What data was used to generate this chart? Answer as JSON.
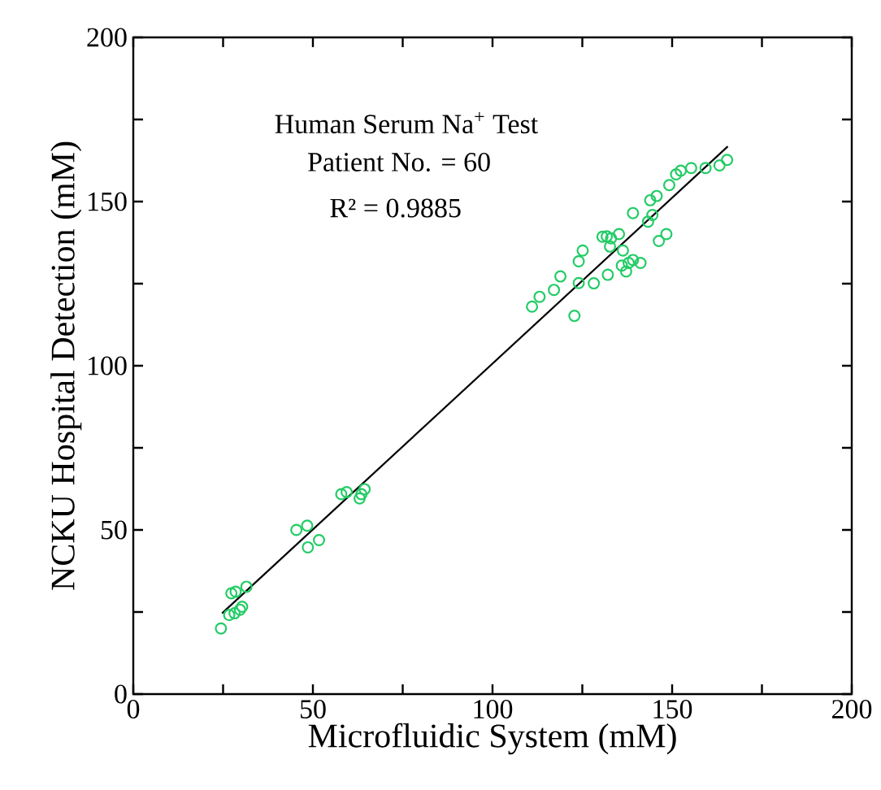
{
  "chart_data": {
    "type": "scatter",
    "xlabel": "Microfluidic System (mM)",
    "ylabel": "NCKU Hospital Detection (mM)",
    "annotations": [
      "Human Serum Na$^{+}$ Test",
      "Patient No. = 60",
      "R² = 0.9885"
    ],
    "marker": "circle",
    "grid": false,
    "xlim": [
      0,
      200
    ],
    "ylim": [
      0,
      200
    ],
    "xticks": [
      0,
      {
        "value": 25,
        "label": null
      },
      50,
      {
        "value": 75,
        "label": null
      },
      100,
      {
        "value": 125,
        "label": null
      },
      150,
      {
        "value": 175,
        "label": null
      },
      200
    ],
    "yticks": [
      0,
      {
        "value": 25,
        "label": null
      },
      50,
      {
        "value": 75,
        "label": null
      },
      100,
      {
        "value": 125,
        "label": null
      },
      150,
      {
        "value": 175,
        "label": null
      },
      200
    ],
    "series": [
      {
        "color": "#22cc66",
        "x": [
          24.4,
          27.3,
          28.5,
          31.5,
          26.7,
          28.2,
          29.7,
          30.3,
          45.4,
          48.4,
          48.6,
          51.7,
          57.9,
          59.4,
          63.0,
          63.5,
          64.4,
          122.8,
          111.0,
          113.1,
          117.1,
          118.9,
          124.0,
          124.0,
          125.1,
          128.2,
          132.1,
          130.6,
          131.8,
          133.0,
          135.2,
          132.7,
          136.3,
          136.0,
          137.9,
          139.1,
          141.2,
          137.2,
          139.1,
          143.3,
          144.5,
          143.9,
          145.7,
          146.3,
          148.4,
          149.2,
          151.1,
          152.4,
          155.3,
          159.3,
          163.2,
          165.3
        ],
        "values": [
          20.0,
          30.7,
          31.2,
          32.7,
          24.1,
          24.6,
          25.7,
          26.6,
          50.0,
          51.3,
          44.7,
          46.9,
          60.9,
          61.5,
          59.6,
          60.9,
          62.4,
          115.2,
          118.0,
          121.0,
          123.1,
          127.2,
          125.2,
          131.8,
          135.1,
          125.1,
          127.7,
          139.3,
          139.4,
          138.8,
          140.1,
          136.3,
          135.1,
          130.5,
          131.3,
          132.2,
          131.3,
          128.7,
          146.5,
          143.9,
          145.9,
          150.4,
          151.7,
          138.0,
          140.1,
          155.0,
          158.3,
          159.4,
          160.2,
          160.2,
          161.0,
          162.7
        ]
      },
      {
        "type": "line",
        "color": "#000000",
        "marker": "none",
        "x": [
          24.7,
          165.5
        ],
        "values": [
          24.6,
          166.8
        ]
      }
    ]
  }
}
